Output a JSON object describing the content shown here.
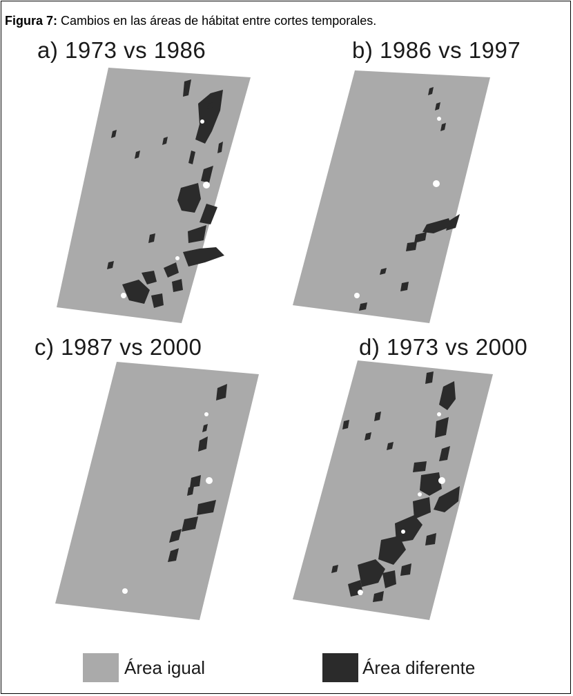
{
  "figure": {
    "caption_label": "Figura 7:",
    "caption_text": " Cambios en las áreas de hábitat entre cortes temporales."
  },
  "panels": [
    {
      "label": "a) 1973 vs 1986"
    },
    {
      "label": "b) 1986 vs 1997"
    },
    {
      "label": "c) 1987 vs 2000"
    },
    {
      "label": "d) 1973 vs 2000"
    }
  ],
  "legend": [
    {
      "label": "Área igual",
      "color": "#aaaaaa"
    },
    {
      "label": "Área diferente",
      "color": "#2b2b2b"
    }
  ],
  "colors": {
    "background": "#ffffff",
    "same_area": "#aaaaaa",
    "different_area": "#2b2b2b"
  }
}
